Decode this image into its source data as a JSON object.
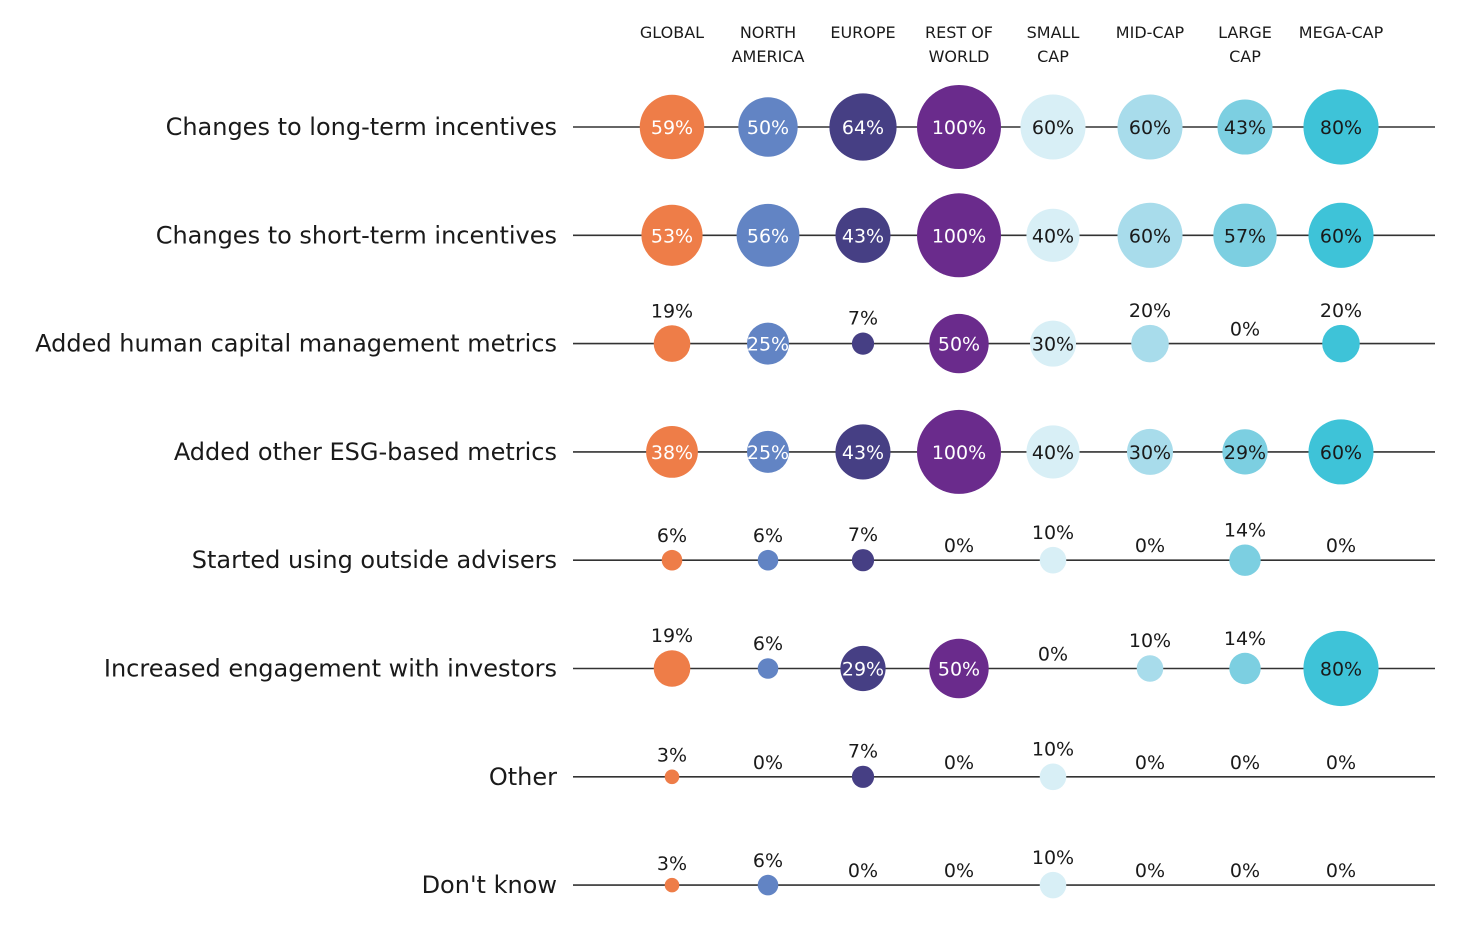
{
  "chart_data": {
    "type": "bubble-matrix",
    "columns": [
      "GLOBAL",
      "NORTH AMERICA",
      "EUROPE",
      "REST OF WORLD",
      "SMALL CAP",
      "MID-CAP",
      "LARGE CAP",
      "MEGA-CAP"
    ],
    "column_header_lines": [
      [
        "GLOBAL"
      ],
      [
        "NORTH",
        "AMERICA"
      ],
      [
        "EUROPE"
      ],
      [
        "REST OF",
        "WORLD"
      ],
      [
        "SMALL",
        "CAP"
      ],
      [
        "MID-CAP"
      ],
      [
        "LARGE",
        "CAP"
      ],
      [
        "MEGA-CAP"
      ]
    ],
    "column_colors": [
      "#ee7d48",
      "#6284c4",
      "#463f84",
      "#6a2b8c",
      "#d8eff6",
      "#a8dceb",
      "#7ccfe1",
      "#3ec3d8"
    ],
    "rows": [
      "Changes to long-term incentives",
      "Changes to short-term incentives",
      "Added human capital management metrics",
      "Added other ESG-based metrics",
      "Started using outside advisers",
      "Increased engagement with investors",
      "Other",
      "Don't know"
    ],
    "values": [
      [
        59,
        50,
        64,
        100,
        60,
        60,
        43,
        80
      ],
      [
        53,
        56,
        43,
        100,
        40,
        60,
        57,
        60
      ],
      [
        19,
        25,
        7,
        50,
        30,
        20,
        0,
        20
      ],
      [
        38,
        25,
        43,
        100,
        40,
        30,
        29,
        60
      ],
      [
        6,
        6,
        7,
        0,
        10,
        0,
        14,
        0
      ],
      [
        19,
        6,
        29,
        50,
        0,
        10,
        14,
        80
      ],
      [
        3,
        0,
        7,
        0,
        10,
        0,
        0,
        0
      ],
      [
        3,
        6,
        0,
        0,
        10,
        0,
        0,
        0
      ]
    ],
    "value_suffix": "%"
  }
}
